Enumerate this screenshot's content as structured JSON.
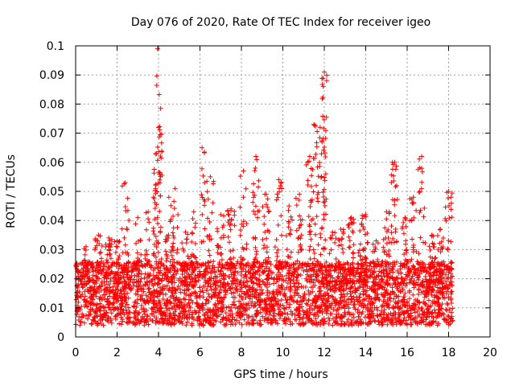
{
  "chart_data": {
    "type": "scatter",
    "title": "Day 076 of 2020, Rate Of TEC Index for receiver igeo",
    "xlabel": "GPS time / hours",
    "ylabel": "ROTI / TECUs",
    "xlim": [
      0,
      20
    ],
    "ylim": [
      0,
      0.1
    ],
    "xticks": [
      0,
      2,
      4,
      6,
      8,
      10,
      12,
      14,
      16,
      18,
      20
    ],
    "yticks": [
      0,
      0.01,
      0.02,
      0.03,
      0.04,
      0.05,
      0.06,
      0.07,
      0.08,
      0.09,
      0.1
    ],
    "xtick_labels": [
      "0",
      "2",
      "4",
      "6",
      "8",
      "10",
      "12",
      "14",
      "16",
      "18",
      "20"
    ],
    "ytick_labels": [
      "0",
      "0.01",
      "0.02",
      "0.03",
      "0.04",
      "0.05",
      "0.06",
      "0.07",
      "0.08",
      "0.09",
      "0.1"
    ],
    "grid": true,
    "marker": "+",
    "color": "#ff0000",
    "data_x_range": [
      0,
      18.2
    ],
    "data_baseline_range": [
      0.008,
      0.022
    ],
    "peaks": [
      {
        "x": 0.5,
        "y": 0.031
      },
      {
        "x": 1.1,
        "y": 0.035
      },
      {
        "x": 1.6,
        "y": 0.034
      },
      {
        "x": 2.0,
        "y": 0.033
      },
      {
        "x": 2.4,
        "y": 0.053
      },
      {
        "x": 3.0,
        "y": 0.041
      },
      {
        "x": 3.5,
        "y": 0.043
      },
      {
        "x": 3.9,
        "y": 0.063
      },
      {
        "x": 3.95,
        "y": 0.099
      },
      {
        "x": 4.0,
        "y": 0.072
      },
      {
        "x": 4.5,
        "y": 0.048
      },
      {
        "x": 4.8,
        "y": 0.051
      },
      {
        "x": 5.3,
        "y": 0.036
      },
      {
        "x": 5.7,
        "y": 0.043
      },
      {
        "x": 6.1,
        "y": 0.065
      },
      {
        "x": 6.5,
        "y": 0.055
      },
      {
        "x": 7.0,
        "y": 0.042
      },
      {
        "x": 7.5,
        "y": 0.044
      },
      {
        "x": 8.1,
        "y": 0.057
      },
      {
        "x": 8.7,
        "y": 0.062
      },
      {
        "x": 9.2,
        "y": 0.049
      },
      {
        "x": 9.8,
        "y": 0.054
      },
      {
        "x": 10.3,
        "y": 0.045
      },
      {
        "x": 10.8,
        "y": 0.049
      },
      {
        "x": 11.3,
        "y": 0.062
      },
      {
        "x": 11.5,
        "y": 0.073
      },
      {
        "x": 11.8,
        "y": 0.072
      },
      {
        "x": 11.95,
        "y": 0.086
      },
      {
        "x": 12.0,
        "y": 0.091
      },
      {
        "x": 12.4,
        "y": 0.036
      },
      {
        "x": 12.8,
        "y": 0.037
      },
      {
        "x": 13.3,
        "y": 0.041
      },
      {
        "x": 13.8,
        "y": 0.039
      },
      {
        "x": 14.0,
        "y": 0.042
      },
      {
        "x": 14.5,
        "y": 0.033
      },
      {
        "x": 15.0,
        "y": 0.043
      },
      {
        "x": 15.4,
        "y": 0.06
      },
      {
        "x": 15.9,
        "y": 0.041
      },
      {
        "x": 16.3,
        "y": 0.048
      },
      {
        "x": 16.7,
        "y": 0.062
      },
      {
        "x": 17.2,
        "y": 0.035
      },
      {
        "x": 17.6,
        "y": 0.037
      },
      {
        "x": 18.0,
        "y": 0.05
      }
    ]
  }
}
